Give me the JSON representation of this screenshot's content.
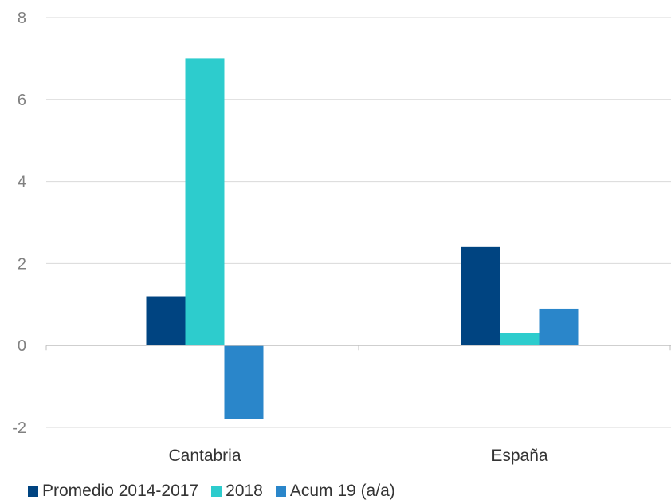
{
  "chart_data": {
    "type": "bar",
    "categories": [
      "Cantabria",
      "España"
    ],
    "series": [
      {
        "name": "Promedio 2014-2017",
        "values": [
          1.2,
          2.4
        ],
        "color": "#004481"
      },
      {
        "name": "2018",
        "values": [
          7.0,
          0.3
        ],
        "color": "#2DCCCD"
      },
      {
        "name": "Acum 19 (a/a)",
        "values": [
          -1.8,
          0.9
        ],
        "color": "#2A86CA"
      }
    ],
    "ylim": [
      -2,
      8
    ],
    "yticks": [
      "-2",
      "0",
      "2",
      "4",
      "6",
      "8"
    ],
    "gridlines": true,
    "legend_position": "bottom-left",
    "title": "",
    "xlabel": "",
    "ylabel": ""
  }
}
